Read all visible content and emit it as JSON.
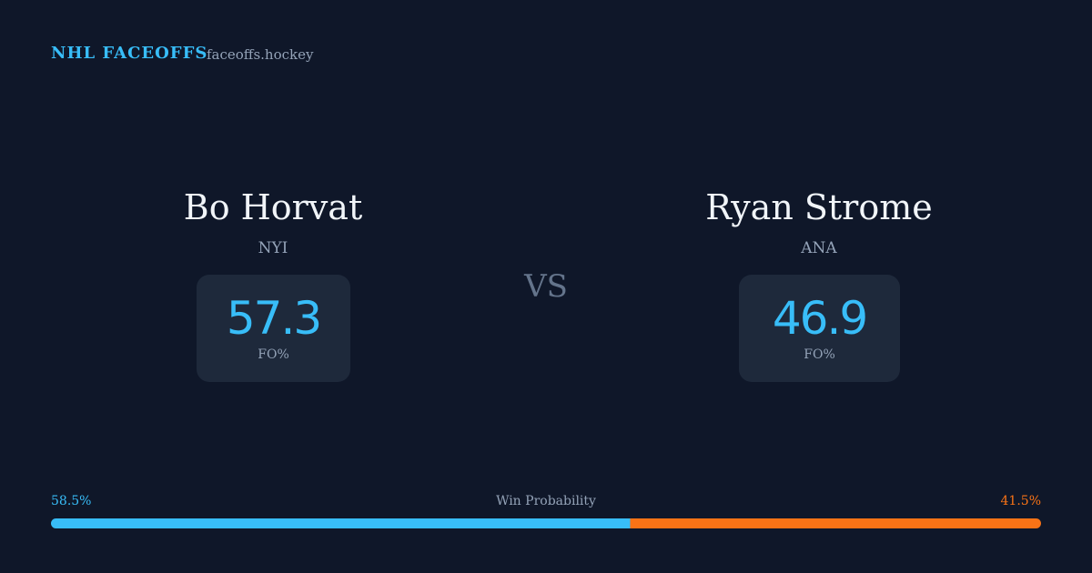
{
  "header": {
    "brand": "NHL FACEOFFS",
    "site": "faceoffs.hockey"
  },
  "players": [
    {
      "name": "Bo Horvat",
      "team": "NYI",
      "stat": "57.3",
      "stat_label": "FO%"
    },
    {
      "name": "Ryan Strome",
      "team": "ANA",
      "stat": "46.9",
      "stat_label": "FO%"
    }
  ],
  "vs": "VS",
  "win_probability": {
    "label": "Win Probability",
    "values": [
      58.5,
      41.5
    ],
    "value_labels": [
      "58.5%",
      "41.5%"
    ],
    "colors": [
      "#38bdf8",
      "#f97316"
    ]
  }
}
